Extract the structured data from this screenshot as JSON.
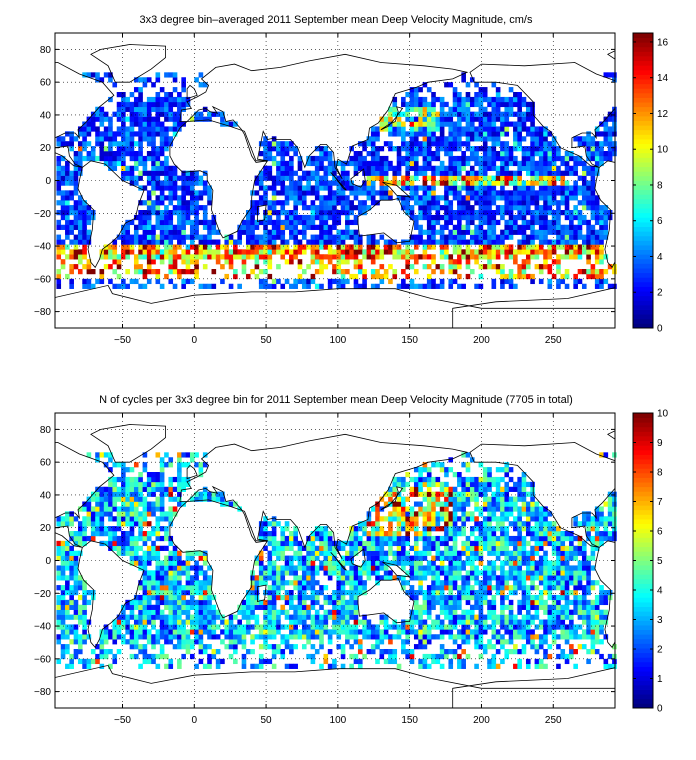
{
  "chart_data": [
    {
      "type": "heatmap",
      "title": "3x3 degree bin–averaged 2011 September mean Deep Velocity Magnitude, cm/s",
      "xlabel": "",
      "ylabel": "",
      "xlim": [
        -97,
        293
      ],
      "ylim": [
        -90,
        90
      ],
      "xticks": [
        -50,
        0,
        50,
        100,
        150,
        200,
        250
      ],
      "yticks": [
        -80,
        -60,
        -40,
        -20,
        0,
        20,
        40,
        60,
        80
      ],
      "grid": true,
      "colorbar": {
        "range": [
          0,
          16.5
        ],
        "ticks": [
          0,
          2,
          4,
          6,
          8,
          10,
          12,
          14,
          16
        ],
        "colormap": "jet"
      },
      "bin_size_deg": 3,
      "description_bins": "dense 3x3 degree bins over the world ocean between about 65S and 65N; mostly 1-6 cm/s, strongest (10-16 cm/s) along the Southern Ocean near 45-55S and equatorial Pacific"
    },
    {
      "type": "heatmap",
      "title": "N of cycles per 3x3 degree bin for 2011 September mean Deep Velocity Magnitude (7705 in total)",
      "xlabel": "",
      "ylabel": "",
      "xlim": [
        -97,
        293
      ],
      "ylim": [
        -90,
        90
      ],
      "xticks": [
        -50,
        0,
        50,
        100,
        150,
        200,
        250
      ],
      "yticks": [
        -80,
        -60,
        -40,
        -20,
        0,
        20,
        40,
        60,
        80
      ],
      "grid": true,
      "colorbar": {
        "range": [
          0,
          10
        ],
        "ticks": [
          0,
          1,
          2,
          3,
          4,
          5,
          6,
          7,
          8,
          9,
          10
        ],
        "colormap": "jet"
      },
      "bin_size_deg": 3
    }
  ]
}
